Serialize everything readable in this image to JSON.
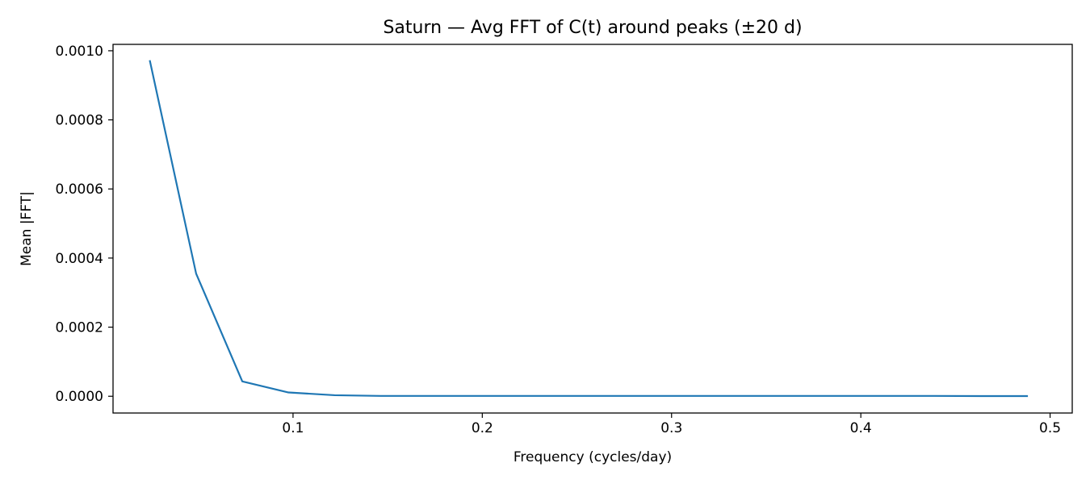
{
  "chart_data": {
    "type": "line",
    "title": "Saturn — Avg FFT of C(t) around peaks (±20 d)",
    "xlabel": "Frequency (cycles/day)",
    "ylabel": "Mean |FFT|",
    "xlim": [
      0.0049,
      0.5117
    ],
    "ylim": [
      -4.85e-05,
      0.0010185
    ],
    "xticks": [
      0.1,
      0.2,
      0.3,
      0.4,
      0.5
    ],
    "xtick_labels": [
      "0.1",
      "0.2",
      "0.3",
      "0.4",
      "0.5"
    ],
    "yticks": [
      0.0,
      0.0002,
      0.0004,
      0.0006,
      0.0008,
      0.001
    ],
    "ytick_labels": [
      "0.0000",
      "0.0002",
      "0.0004",
      "0.0006",
      "0.0008",
      "0.0010"
    ],
    "grid": false,
    "line_color": "#1f77b4",
    "series": [
      {
        "x": [
          0.0244,
          0.0488,
          0.0732,
          0.0976,
          0.122,
          0.1463,
          0.1707,
          0.1951,
          0.2195,
          0.2439,
          0.2683,
          0.2927,
          0.3171,
          0.3415,
          0.3659,
          0.3902,
          0.4146,
          0.439,
          0.4634,
          0.4878
        ],
        "values": [
          0.00097,
          0.000355,
          4.3e-05,
          1.1e-05,
          3e-06,
          1e-06,
          1e-06,
          1e-06,
          1e-06,
          1e-06,
          1e-06,
          1e-06,
          1e-06,
          1e-06,
          1e-06,
          1e-06,
          1e-06,
          1e-06,
          5e-07,
          5e-07
        ]
      }
    ]
  }
}
